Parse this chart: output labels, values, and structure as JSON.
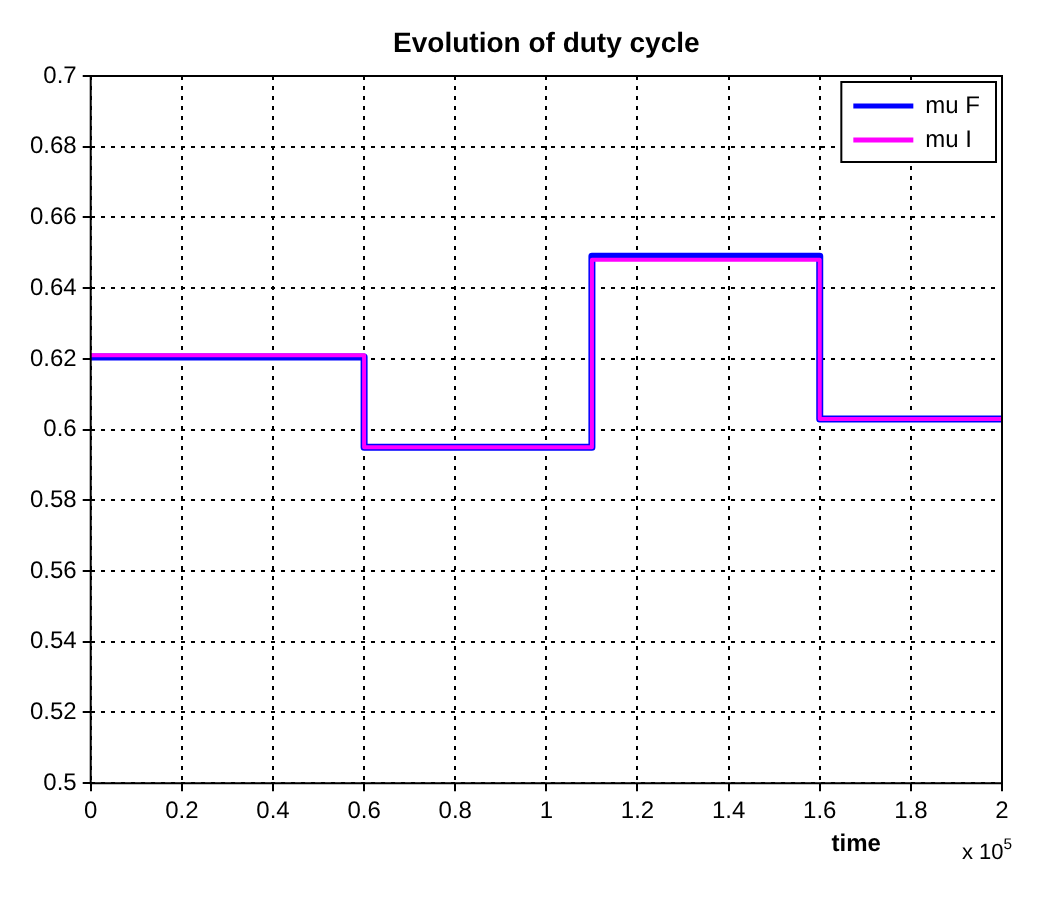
{
  "chart_data": {
    "type": "step",
    "title": "Evolution of duty cycle",
    "xlabel": "time",
    "annotations": [
      "x 10$^{5}$"
    ],
    "series": [
      {
        "name": "mu F",
        "color": "#0000ff",
        "x": [
          0,
          0.6,
          1.1,
          1.6,
          2
        ],
        "values": [
          0.6205,
          0.595,
          0.649,
          0.603,
          0.603
        ]
      },
      {
        "name": "mu I",
        "color": "#ff00ff",
        "x": [
          0,
          0.6,
          1.1,
          1.6,
          2
        ],
        "values": [
          0.621,
          0.595,
          0.648,
          0.603,
          0.603
        ]
      }
    ],
    "xlim": [
      0,
      2
    ],
    "xticks": [
      0,
      0.2,
      0.4,
      0.6,
      0.8,
      1,
      1.2,
      1.4,
      1.6,
      1.8,
      2
    ],
    "ylim": [
      0.5,
      0.7
    ],
    "yticks": [
      0.5,
      0.52,
      0.54,
      0.56,
      0.58,
      0.6,
      0.62,
      0.64,
      0.66,
      0.68,
      0.7
    ],
    "grid": true,
    "legend": "top right",
    "marker": "none",
    "line_style": "solid"
  }
}
